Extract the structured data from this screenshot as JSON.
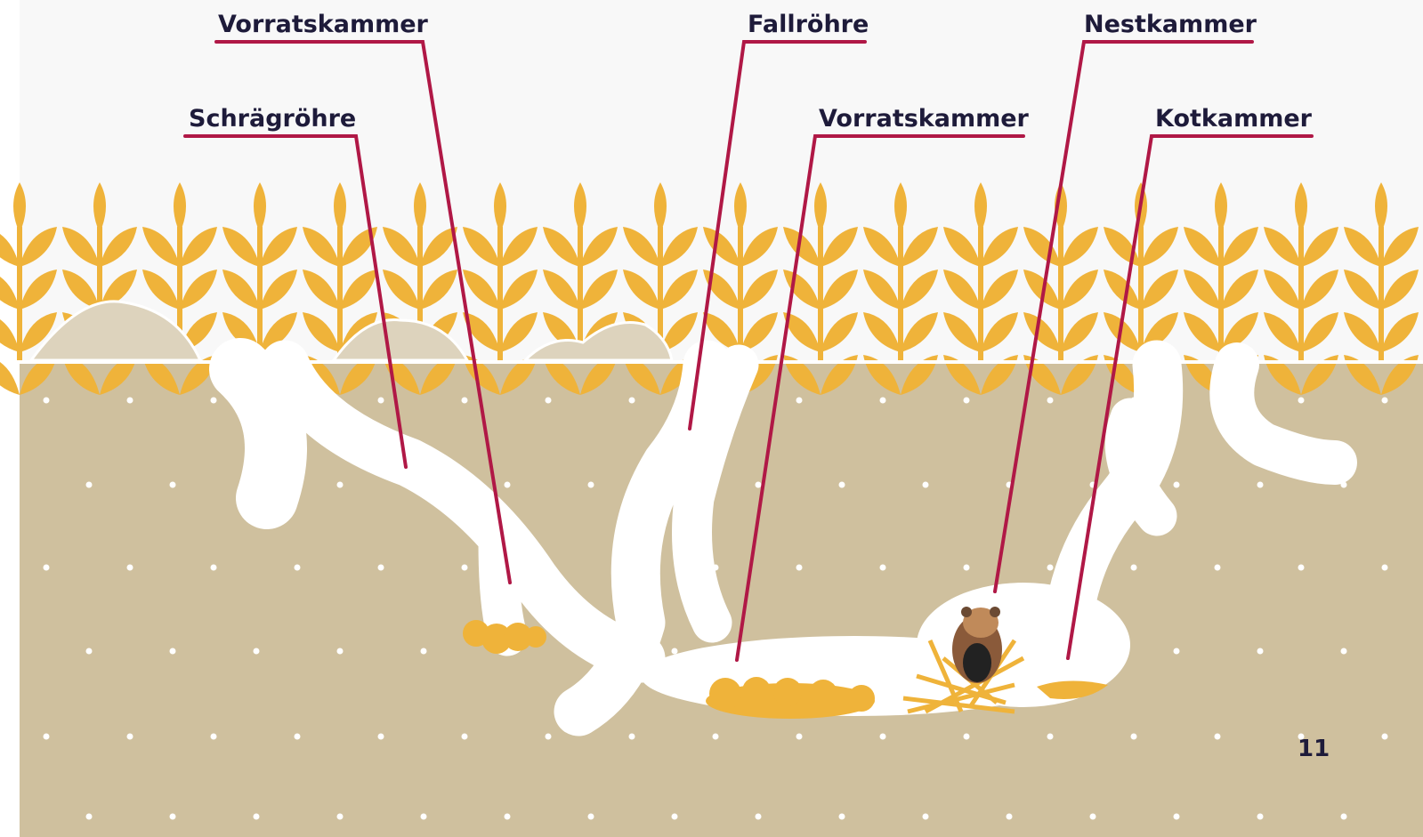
{
  "labels": [
    "Vorratskammer",
    "Fallröhre",
    "Nestkammer",
    "Schrägröhre",
    "Vorratskammer",
    "Kotkammer"
  ],
  "page_number": "11"
}
